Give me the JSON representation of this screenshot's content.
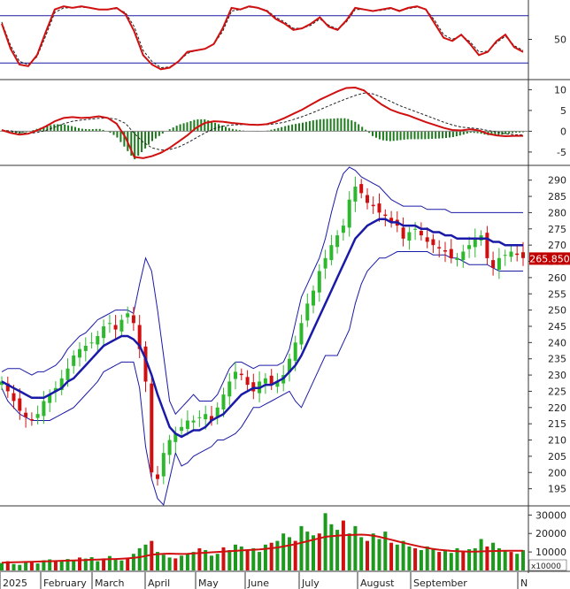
{
  "chart_data": [
    {
      "type": "line",
      "panel": "stochastic",
      "y_ticks": [
        "50"
      ],
      "overbought": 80,
      "oversold": 20,
      "ylim": [
        0,
        100
      ],
      "series": [
        {
          "values": [
            70,
            38,
            18,
            16,
            30,
            60,
            88,
            92,
            90,
            92,
            90,
            88,
            88,
            90,
            82,
            60,
            30,
            18,
            12,
            14,
            22,
            34,
            36,
            38,
            44,
            64,
            90,
            88,
            92,
            90,
            86,
            76,
            70,
            62,
            64,
            70,
            78,
            66,
            62,
            74,
            90,
            88,
            86,
            88,
            90,
            86,
            90,
            92,
            88,
            70,
            52,
            48,
            56,
            44,
            30,
            34,
            48,
            56,
            40,
            34
          ]
        },
        {
          "values": [
            72,
            42,
            22,
            18,
            28,
            55,
            84,
            90,
            90,
            91,
            90,
            88,
            88,
            89,
            84,
            66,
            36,
            22,
            14,
            15,
            22,
            32,
            36,
            38,
            44,
            60,
            86,
            88,
            91,
            90,
            87,
            78,
            72,
            64,
            64,
            68,
            76,
            68,
            63,
            72,
            88,
            88,
            86,
            87,
            89,
            87,
            89,
            91,
            88,
            74,
            56,
            50,
            55,
            47,
            34,
            35,
            46,
            54,
            42,
            36
          ]
        }
      ]
    },
    {
      "type": "line",
      "panel": "macd",
      "y_ticks": [
        "10",
        "5",
        "0",
        "-5"
      ],
      "ylim": [
        -8,
        12
      ],
      "series": [
        {
          "values": [
            0.3,
            -0.4,
            -0.8,
            -0.6,
            0.2,
            1.2,
            2.4,
            3.2,
            3.4,
            3.2,
            3.3,
            3.6,
            3.2,
            1.8,
            -1.5,
            -6.2,
            -6.5,
            -6.0,
            -5.2,
            -4.0,
            -2.5,
            -1.0,
            0.8,
            2.0,
            2.4,
            2.3,
            2.0,
            1.8,
            1.6,
            1.5,
            1.7,
            2.3,
            3.2,
            4.2,
            5.2,
            6.4,
            7.6,
            8.6,
            9.6,
            10.4,
            10.5,
            9.8,
            8.0,
            6.4,
            5.2,
            4.4,
            3.8,
            3.0,
            2.2,
            1.5,
            0.8,
            0.3,
            0.2,
            0.5,
            0.2,
            -0.6,
            -1.0,
            -1.2,
            -1.1,
            -1.1
          ]
        },
        {
          "values": [
            0.2,
            0.1,
            -0.3,
            -0.5,
            -0.3,
            0.2,
            1.0,
            1.8,
            2.4,
            2.7,
            2.9,
            3.1,
            3.2,
            2.9,
            1.9,
            -0.5,
            -2.6,
            -4.0,
            -4.5,
            -4.4,
            -3.8,
            -2.8,
            -1.6,
            -0.4,
            0.6,
            1.2,
            1.5,
            1.6,
            1.6,
            1.6,
            1.6,
            1.8,
            2.2,
            2.8,
            3.5,
            4.3,
            5.2,
            6.1,
            7.0,
            7.8,
            8.6,
            9.2,
            9.0,
            8.2,
            7.2,
            6.2,
            5.4,
            4.6,
            3.8,
            3.0,
            2.2,
            1.5,
            1.0,
            0.8,
            0.6,
            0.2,
            -0.2,
            -0.6,
            -0.8,
            -0.9
          ]
        }
      ]
    },
    {
      "type": "candlestick",
      "panel": "price",
      "y_ticks": [
        "290",
        "285",
        "280",
        "275",
        "270",
        "265",
        "260",
        "255",
        "250",
        "245",
        "240",
        "235",
        "230",
        "225",
        "220",
        "215",
        "210",
        "205",
        "200",
        "195"
      ],
      "ylim": [
        190,
        294
      ],
      "last_price_label": "265.850",
      "close": [
        228,
        225,
        222,
        219,
        217,
        216,
        218,
        222,
        224,
        226,
        229,
        232,
        236,
        238,
        239,
        240,
        242,
        245,
        246,
        244,
        247,
        249,
        246,
        238,
        228,
        200,
        198,
        206,
        210,
        212,
        214,
        216,
        216,
        217,
        218,
        216,
        220,
        224,
        228,
        231,
        230,
        227,
        225,
        228,
        229,
        227,
        228,
        230,
        235,
        240,
        246,
        252,
        256,
        262,
        266,
        270,
        273,
        276,
        284,
        288,
        286,
        283,
        282,
        280,
        279,
        277,
        276,
        272,
        274,
        275,
        273,
        271,
        270,
        269,
        268,
        266,
        266,
        268,
        270,
        272,
        273,
        266,
        263,
        266,
        267,
        268,
        267,
        266
      ],
      "bb_mid": [
        228,
        227,
        226,
        225,
        224,
        223,
        223,
        223,
        224,
        225,
        226,
        228,
        229,
        231,
        233,
        235,
        237,
        239,
        240,
        241,
        242,
        242,
        241,
        239,
        235,
        230,
        224,
        219,
        214,
        212,
        211,
        212,
        213,
        213,
        214,
        216,
        217,
        218,
        220,
        222,
        224,
        225,
        226,
        226,
        227,
        227,
        228,
        229,
        231,
        233,
        236,
        240,
        244,
        248,
        252,
        256,
        260,
        264,
        268,
        272,
        274,
        276,
        277,
        278,
        278,
        277,
        277,
        276,
        276,
        276,
        275,
        275,
        274,
        274,
        273,
        273,
        272,
        272,
        272,
        272,
        272,
        272,
        271,
        271,
        270,
        270,
        270,
        270
      ],
      "bb_upper": [
        231,
        232,
        232,
        232,
        231,
        230,
        231,
        231,
        232,
        233,
        235,
        238,
        240,
        242,
        243,
        245,
        247,
        248,
        249,
        250,
        250,
        250,
        249,
        258,
        266,
        262,
        250,
        236,
        222,
        218,
        220,
        222,
        224,
        222,
        222,
        222,
        224,
        228,
        232,
        234,
        234,
        233,
        232,
        233,
        233,
        233,
        233,
        234,
        238,
        246,
        254,
        258,
        262,
        266,
        272,
        280,
        287,
        292,
        294,
        293,
        291,
        290,
        289,
        288,
        286,
        284,
        283,
        282,
        282,
        282,
        282,
        281,
        281,
        281,
        281,
        280,
        280,
        280,
        280,
        280,
        280,
        280,
        280,
        280,
        280,
        280,
        280,
        280
      ],
      "bb_lower": [
        226,
        222,
        220,
        218,
        217,
        216,
        216,
        216,
        216,
        217,
        218,
        219,
        220,
        222,
        224,
        226,
        228,
        231,
        232,
        233,
        234,
        234,
        234,
        226,
        208,
        198,
        192,
        190,
        198,
        206,
        202,
        203,
        205,
        206,
        207,
        208,
        210,
        210,
        211,
        212,
        214,
        217,
        220,
        220,
        221,
        222,
        223,
        224,
        225,
        222,
        220,
        224,
        228,
        232,
        236,
        236,
        236,
        240,
        244,
        252,
        258,
        262,
        264,
        266,
        266,
        267,
        268,
        268,
        268,
        268,
        268,
        268,
        267,
        267,
        267,
        266,
        266,
        265,
        264,
        264,
        264,
        264,
        263,
        262,
        262,
        262,
        262,
        262
      ]
    },
    {
      "type": "bar",
      "panel": "volume",
      "y_ticks": [
        "30000",
        "20000",
        "10000"
      ],
      "unit_label": "x10000",
      "ylim": [
        0,
        34000
      ],
      "values": [
        4000,
        5000,
        3500,
        3000,
        4500,
        5000,
        3800,
        5500,
        6000,
        5200,
        4800,
        6200,
        5600,
        7000,
        6400,
        7200,
        5000,
        6500,
        7800,
        6000,
        5400,
        7000,
        9000,
        12000,
        14000,
        16000,
        10000,
        8500,
        7000,
        6500,
        8000,
        9000,
        10000,
        12000,
        11000,
        8000,
        9000,
        12500,
        11000,
        14000,
        13000,
        11000,
        12000,
        10000,
        14000,
        15000,
        16000,
        20000,
        18000,
        16000,
        24000,
        21000,
        19000,
        20000,
        31000,
        25000,
        22000,
        27000,
        20000,
        24000,
        18000,
        16000,
        20000,
        17000,
        21000,
        15000,
        14000,
        16000,
        13000,
        12000,
        11000,
        13000,
        12000,
        10000,
        11000,
        9500,
        12000,
        10000,
        11500,
        12000,
        17000,
        13000,
        15000,
        12000,
        11000,
        10000,
        9000,
        11000
      ],
      "ma_values": [
        4200,
        4300,
        4400,
        4500,
        4600,
        4700,
        4800,
        4900,
        5000,
        5100,
        5200,
        5300,
        5400,
        5500,
        5600,
        5800,
        5900,
        6000,
        6100,
        6200,
        6300,
        6500,
        6800,
        7200,
        7800,
        8500,
        8800,
        9000,
        9100,
        9000,
        8900,
        9000,
        9200,
        9400,
        9600,
        9800,
        10000,
        10200,
        10400,
        10600,
        10800,
        11000,
        11200,
        11400,
        11700,
        12000,
        12400,
        13000,
        13600,
        14200,
        15000,
        15800,
        16600,
        17400,
        18200,
        18600,
        18800,
        19000,
        19200,
        19300,
        19400,
        19200,
        18800,
        18200,
        17400,
        16600,
        15800,
        15000,
        14200,
        13500,
        12800,
        12200,
        11600,
        11200,
        10900,
        10600,
        10400,
        10300,
        10200,
        10200,
        10300,
        10400,
        10500,
        10600,
        10700,
        10700,
        10700,
        10700
      ]
    }
  ],
  "x_axis": {
    "months": [
      "2025",
      "February",
      "March",
      "April",
      "May",
      "June",
      "July",
      "August",
      "September",
      "N"
    ]
  }
}
